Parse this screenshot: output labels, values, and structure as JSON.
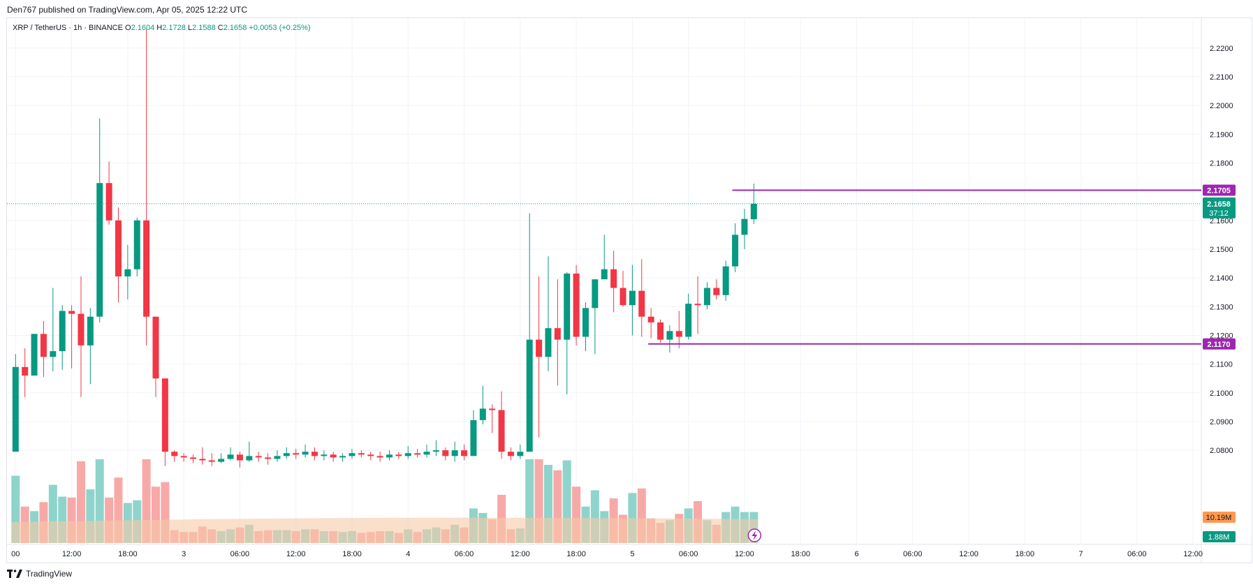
{
  "header": {
    "published": "Den767 published on TradingView.com, Apr 05, 2025 12:22 UTC"
  },
  "legend": {
    "symbol": "XRP / TetherUS · 1h · BINANCE",
    "o_label": "O",
    "o_value": "2.1604",
    "h_label": "H",
    "h_value": "2.1728",
    "l_label": "L",
    "l_value": "2.1588",
    "c_label": "C",
    "c_value": "2.1658",
    "change": "+0.0053 (+0.25%)"
  },
  "footer": {
    "brand": "TradingView"
  },
  "colors": {
    "up": "#089981",
    "down": "#f23645",
    "level": "#9c27b0",
    "volume_ma": "#f7c9a8",
    "vol_up": "#8fd4cb",
    "vol_down": "#f7a9a7",
    "vol_badge": "#ff9850"
  },
  "chart_data": {
    "type": "candlestick",
    "ylim": [
      2.0725,
      2.2265
    ],
    "y_ticks": [
      "2.2200",
      "2.2100",
      "2.2000",
      "2.1900",
      "2.1800",
      "2.1600",
      "2.1500",
      "2.1400",
      "2.1300",
      "2.1200",
      "2.1100",
      "2.1000",
      "2.0900",
      "2.0800"
    ],
    "x_ticks": [
      "00",
      "12:00",
      "18:00",
      "3",
      "06:00",
      "12:00",
      "18:00",
      "4",
      "06:00",
      "12:00",
      "18:00",
      "5",
      "06:00",
      "12:00",
      "18:00",
      "6",
      "06:00",
      "12:00",
      "18:00",
      "7",
      "06:00",
      "12:00"
    ],
    "x_tick_bar_index": [
      0,
      6,
      12,
      18,
      24,
      30,
      36,
      42,
      48,
      54,
      60,
      66,
      72,
      78,
      84,
      90,
      96,
      102,
      108,
      114,
      120,
      126
    ],
    "candles": [
      [
        2.0795,
        2.109,
        2.1135,
        2.0795
      ],
      [
        2.109,
        2.106,
        2.1155,
        2.0985
      ],
      [
        2.106,
        2.1205,
        2.1205,
        2.106
      ],
      [
        2.1205,
        2.1125,
        2.125,
        2.1055
      ],
      [
        2.1125,
        2.1145,
        2.1365,
        2.1075
      ],
      [
        2.1145,
        2.1285,
        2.1305,
        2.108
      ],
      [
        2.1285,
        2.1275,
        2.1305,
        2.1085
      ],
      [
        2.1275,
        2.1165,
        2.1405,
        2.0985
      ],
      [
        2.1165,
        2.1265,
        2.1295,
        2.103
      ],
      [
        2.1265,
        2.173,
        2.1955,
        2.1245
      ],
      [
        2.173,
        2.16,
        2.1805,
        2.1585
      ],
      [
        2.16,
        2.1405,
        2.1645,
        2.1315
      ],
      [
        2.1405,
        2.143,
        2.1515,
        2.1325
      ],
      [
        2.143,
        2.16,
        2.161,
        2.1405
      ],
      [
        2.16,
        2.1265,
        2.2265,
        2.1165
      ],
      [
        2.1265,
        2.105,
        2.1265,
        2.0985
      ],
      [
        2.105,
        2.0795,
        2.105,
        2.0745
      ],
      [
        2.0795,
        2.078,
        2.08,
        2.076
      ],
      [
        2.078,
        2.0775,
        2.079,
        2.076
      ],
      [
        2.0775,
        2.077,
        2.0785,
        2.0755
      ],
      [
        2.077,
        2.0765,
        2.081,
        2.075
      ],
      [
        2.0765,
        2.076,
        2.079,
        2.0745
      ],
      [
        2.076,
        2.077,
        2.079,
        2.0755
      ],
      [
        2.077,
        2.0785,
        2.081,
        2.0765
      ],
      [
        2.0785,
        2.0765,
        2.0795,
        2.074
      ],
      [
        2.0765,
        2.078,
        2.083,
        2.076
      ],
      [
        2.078,
        2.0775,
        2.0795,
        2.076
      ],
      [
        2.0775,
        2.077,
        2.079,
        2.075
      ],
      [
        2.077,
        2.078,
        2.08,
        2.076
      ],
      [
        2.078,
        2.079,
        2.081,
        2.077
      ],
      [
        2.079,
        2.0785,
        2.0805,
        2.077
      ],
      [
        2.0785,
        2.0795,
        2.082,
        2.0775
      ],
      [
        2.0795,
        2.078,
        2.081,
        2.0765
      ],
      [
        2.078,
        2.0785,
        2.08,
        2.0765
      ],
      [
        2.0785,
        2.0775,
        2.0795,
        2.076
      ],
      [
        2.0775,
        2.078,
        2.079,
        2.076
      ],
      [
        2.078,
        2.079,
        2.0805,
        2.077
      ],
      [
        2.079,
        2.0785,
        2.08,
        2.0775
      ],
      [
        2.0785,
        2.078,
        2.0795,
        2.0765
      ],
      [
        2.078,
        2.0775,
        2.0795,
        2.076
      ],
      [
        2.0775,
        2.0785,
        2.08,
        2.0765
      ],
      [
        2.0785,
        2.078,
        2.0795,
        2.077
      ],
      [
        2.078,
        2.079,
        2.0815,
        2.077
      ],
      [
        2.079,
        2.0785,
        2.0805,
        2.0775
      ],
      [
        2.0785,
        2.0795,
        2.082,
        2.0775
      ],
      [
        2.0795,
        2.08,
        2.0835,
        2.078
      ],
      [
        2.08,
        2.078,
        2.081,
        2.0765
      ],
      [
        2.078,
        2.08,
        2.083,
        2.076
      ],
      [
        2.08,
        2.078,
        2.082,
        2.0765
      ],
      [
        2.078,
        2.0905,
        2.094,
        2.078
      ],
      [
        2.0905,
        2.0945,
        2.1025,
        2.089
      ],
      [
        2.0945,
        2.094,
        2.096,
        2.086
      ],
      [
        2.094,
        2.0795,
        2.1005,
        2.077
      ],
      [
        2.0795,
        2.078,
        2.081,
        2.0765
      ],
      [
        2.078,
        2.0795,
        2.082,
        2.077
      ],
      [
        2.0795,
        2.1185,
        2.1625,
        2.0795
      ],
      [
        2.1185,
        2.1125,
        2.1405,
        2.0845
      ],
      [
        2.1125,
        2.1225,
        2.1475,
        2.1075
      ],
      [
        2.1225,
        2.1185,
        2.1395,
        2.1025
      ],
      [
        2.1185,
        2.1415,
        2.142,
        2.0995
      ],
      [
        2.1415,
        2.1195,
        2.1445,
        2.1165
      ],
      [
        2.1195,
        2.1295,
        2.1315,
        2.1145
      ],
      [
        2.1295,
        2.1395,
        2.1395,
        2.1135
      ],
      [
        2.1395,
        2.143,
        2.155,
        2.1405
      ],
      [
        2.143,
        2.1365,
        2.1495,
        2.128
      ],
      [
        2.1365,
        2.1305,
        2.1425,
        2.13
      ],
      [
        2.1305,
        2.1355,
        2.1445,
        2.12
      ],
      [
        2.1355,
        2.1265,
        2.1465,
        2.1195
      ],
      [
        2.1265,
        2.1245,
        2.1295,
        2.119
      ],
      [
        2.1245,
        2.1185,
        2.1255,
        2.1175
      ],
      [
        2.1185,
        2.1215,
        2.1235,
        2.114
      ],
      [
        2.1215,
        2.1195,
        2.1285,
        2.1155
      ],
      [
        2.1195,
        2.131,
        2.1345,
        2.1185
      ],
      [
        2.131,
        2.1305,
        2.1405,
        2.1205
      ],
      [
        2.1305,
        2.1365,
        2.1385,
        2.129
      ],
      [
        2.1365,
        2.134,
        2.1395,
        2.1325
      ],
      [
        2.134,
        2.144,
        2.146,
        2.132
      ],
      [
        2.144,
        2.155,
        2.159,
        2.142
      ],
      [
        2.155,
        2.1605,
        2.164,
        2.15
      ],
      [
        2.1604,
        2.1658,
        2.1728,
        2.1588
      ]
    ],
    "volume_label": "10.19M",
    "volume_ma_label": "1.88M",
    "level_high": {
      "value": 2.1705,
      "label": "2.1705",
      "from_bar": 77
    },
    "level_low": {
      "value": 2.117,
      "label": "2.1170",
      "from_bar": 68
    },
    "last_price": {
      "value": 2.1658,
      "label": "2.1658",
      "countdown": "37:12"
    }
  }
}
